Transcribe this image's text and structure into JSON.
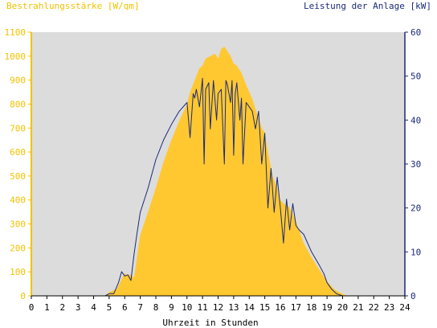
{
  "chart_data": {
    "type": "area",
    "xlabel": "Uhrzeit in Stunden",
    "x_ticks": [
      "0",
      "1",
      "2",
      "3",
      "4",
      "5",
      "6",
      "7",
      "8",
      "9",
      "10",
      "11",
      "12",
      "13",
      "14",
      "15",
      "16",
      "17",
      "18",
      "19",
      "20",
      "21",
      "22",
      "23",
      "24"
    ],
    "xlim": [
      0,
      24
    ],
    "y_left": {
      "label": "Bestrahlungsstärke [W/qm]",
      "ticks": [
        "0",
        "100",
        "200",
        "300",
        "400",
        "500",
        "600",
        "700",
        "800",
        "900",
        "1000",
        "1100"
      ],
      "lim": [
        0,
        1100
      ]
    },
    "y_right": {
      "label": "Leistung der Anlage [kW]",
      "ticks": [
        "0",
        "10",
        "20",
        "30",
        "40",
        "50",
        "60"
      ],
      "lim": [
        0,
        60
      ]
    },
    "grid": false,
    "colors": {
      "plot_background": "#dcdcdc",
      "irradiance_fill": "#ffc830",
      "power_line": "#1a2a7a",
      "left_axis": "#f2c200",
      "right_axis": "#1a2a7a"
    },
    "series": [
      {
        "axis": "left",
        "style": "area",
        "x": [
          0,
          4.75,
          5.0,
          5.5,
          5.8,
          6.0,
          6.2,
          6.4,
          6.6,
          6.8,
          7.0,
          7.5,
          8.0,
          8.5,
          9.0,
          9.5,
          10.0,
          10.2,
          10.5,
          10.8,
          11.0,
          11.2,
          11.5,
          11.8,
          12.0,
          12.2,
          12.4,
          12.6,
          12.8,
          13.0,
          13.2,
          13.5,
          13.8,
          14.0,
          14.2,
          14.5,
          14.8,
          15.0,
          15.2,
          15.5,
          15.8,
          16.0,
          16.3,
          16.6,
          17.0,
          17.5,
          18.0,
          18.5,
          19.0,
          19.5,
          20.0,
          20.3,
          21.0,
          24.0
        ],
        "y": [
          0,
          0,
          15,
          30,
          70,
          95,
          85,
          90,
          75,
          170,
          255,
          350,
          450,
          560,
          650,
          730,
          800,
          850,
          900,
          950,
          960,
          990,
          1000,
          1010,
          990,
          1030,
          1040,
          1020,
          1000,
          970,
          960,
          930,
          880,
          850,
          820,
          760,
          700,
          680,
          600,
          500,
          450,
          400,
          380,
          370,
          310,
          220,
          160,
          110,
          60,
          25,
          8,
          0,
          0,
          0
        ]
      },
      {
        "axis": "right",
        "style": "line",
        "x": [
          0,
          4.75,
          5.0,
          5.3,
          5.6,
          5.8,
          6.0,
          6.2,
          6.4,
          6.6,
          6.8,
          7.0,
          7.5,
          8.0,
          8.5,
          9.0,
          9.5,
          10.0,
          10.2,
          10.4,
          10.5,
          10.6,
          10.8,
          11.0,
          11.1,
          11.2,
          11.4,
          11.5,
          11.7,
          11.9,
          12.0,
          12.2,
          12.4,
          12.5,
          12.6,
          12.8,
          12.9,
          13.0,
          13.1,
          13.2,
          13.4,
          13.5,
          13.6,
          13.8,
          14.0,
          14.2,
          14.4,
          14.6,
          14.8,
          15.0,
          15.2,
          15.4,
          15.6,
          15.8,
          16.0,
          16.2,
          16.4,
          16.6,
          16.8,
          17.0,
          17.2,
          17.5,
          18.0,
          18.5,
          18.8,
          19.0,
          19.3,
          19.6,
          20.0,
          20.5,
          24.0
        ],
        "y": [
          0,
          0,
          0.5,
          0.5,
          3.0,
          5.5,
          4.5,
          4.8,
          3.5,
          9.5,
          14.5,
          19.0,
          24.5,
          31.0,
          35.5,
          39.0,
          42.0,
          44.0,
          36.0,
          46.0,
          45.0,
          47.0,
          43.0,
          49.5,
          30.0,
          47.0,
          48.5,
          38.0,
          49.0,
          40.0,
          46.0,
          47.0,
          30.0,
          49.0,
          48.0,
          44.0,
          49.0,
          32.0,
          46.0,
          48.5,
          40.0,
          45.0,
          30.0,
          44.0,
          43.0,
          42.0,
          38.0,
          42.0,
          30.0,
          37.0,
          20.0,
          29.0,
          19.0,
          27.0,
          20.0,
          12.0,
          22.0,
          15.0,
          21.0,
          16.0,
          15.0,
          14.0,
          10.0,
          7.0,
          5.0,
          3.0,
          1.5,
          0.5,
          0,
          0,
          0
        ]
      }
    ]
  }
}
